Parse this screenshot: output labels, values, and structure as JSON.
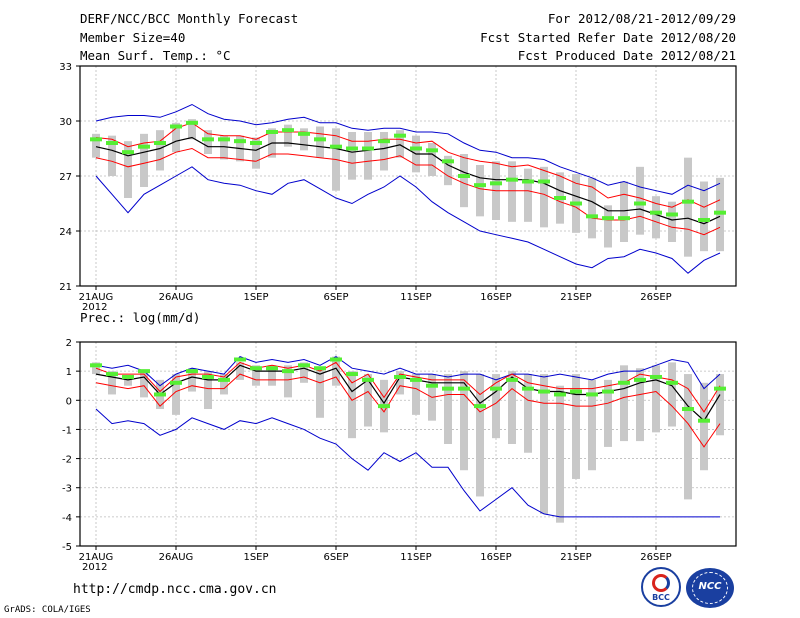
{
  "header": {
    "title": "DERF/NCC/BCC Monthly Forecast",
    "member_size": "Member Size=40",
    "variable": "Mean Surf. Temp.: °C",
    "period": "For 2012/08/21-2012/09/29",
    "started": "Fcst Started Refer Date 2012/08/20",
    "produced": "Fcst Produced Date 2012/08/21"
  },
  "footer": {
    "url": "http://cmdp.ncc.cma.gov.cn",
    "grads": "GrADS: COLA/IGES",
    "logo1_text": "BCC",
    "logo2_text": "NCC"
  },
  "colors": {
    "ensemble_mean": "#000000",
    "spread": "#ff0000",
    "envelope": "#0000cc",
    "box": "#c8c8c8",
    "marker": "#55ee33"
  },
  "chart_data": [
    {
      "type": "line",
      "title": "Mean Surf. Temp.: °C",
      "x_tick_labels": [
        "21AUG",
        "26AUG",
        "1SEP",
        "6SEP",
        "11SEP",
        "16SEP",
        "21SEP",
        "26SEP"
      ],
      "x_tick_year": "2012",
      "y_tick_labels": [
        "21",
        "24",
        "27",
        "30",
        "33"
      ],
      "ylim": [
        21,
        33
      ],
      "days": 40,
      "series": [
        {
          "name": "max",
          "values": [
            30.0,
            30.2,
            30.3,
            30.3,
            30.2,
            30.5,
            30.9,
            30.4,
            30.1,
            30.0,
            29.8,
            29.9,
            30.1,
            30.2,
            29.9,
            29.9,
            29.6,
            29.5,
            29.6,
            29.6,
            29.4,
            29.4,
            29.3,
            28.8,
            28.4,
            28.3,
            28.0,
            28.0,
            27.9,
            27.5,
            27.2,
            26.9,
            26.5,
            26.7,
            26.4,
            26.2,
            26.0,
            26.5,
            26.2,
            26.6
          ]
        },
        {
          "name": "spread_upper",
          "values": [
            29.1,
            29.0,
            28.6,
            28.8,
            28.9,
            29.6,
            29.9,
            29.3,
            29.2,
            29.2,
            29.0,
            29.4,
            29.4,
            29.4,
            29.3,
            29.2,
            28.9,
            28.9,
            29.0,
            29.0,
            28.8,
            28.9,
            28.3,
            28.0,
            27.8,
            27.7,
            27.5,
            27.6,
            27.3,
            27.0,
            26.6,
            26.4,
            25.8,
            26.0,
            25.8,
            25.5,
            25.3,
            25.7,
            25.3,
            25.7
          ]
        },
        {
          "name": "mean",
          "values": [
            28.6,
            28.4,
            28.1,
            28.3,
            28.5,
            28.9,
            29.1,
            28.6,
            28.6,
            28.5,
            28.4,
            28.8,
            28.8,
            28.7,
            28.6,
            28.5,
            28.3,
            28.4,
            28.5,
            28.7,
            28.2,
            28.2,
            27.6,
            27.2,
            26.9,
            26.8,
            26.8,
            26.8,
            26.6,
            26.2,
            25.9,
            25.6,
            25.1,
            25.1,
            25.2,
            24.9,
            24.6,
            24.7,
            24.4,
            24.8
          ]
        },
        {
          "name": "spread_lower",
          "values": [
            28.0,
            27.8,
            27.5,
            27.7,
            27.9,
            28.3,
            28.5,
            28.0,
            28.0,
            27.9,
            27.8,
            28.2,
            28.2,
            28.1,
            28.0,
            27.9,
            27.7,
            27.8,
            27.9,
            28.1,
            27.6,
            27.6,
            27.0,
            26.6,
            26.3,
            26.2,
            26.2,
            26.2,
            26.0,
            25.6,
            25.3,
            24.7,
            24.6,
            24.6,
            24.8,
            24.5,
            24.2,
            24.1,
            23.8,
            24.2
          ]
        },
        {
          "name": "min",
          "values": [
            27.0,
            26.0,
            25.0,
            26.0,
            26.5,
            27.0,
            27.5,
            26.8,
            26.6,
            26.5,
            26.2,
            26.0,
            26.6,
            26.8,
            26.3,
            25.8,
            25.5,
            26.0,
            26.4,
            27.0,
            26.4,
            25.6,
            25.0,
            24.5,
            24.0,
            23.8,
            23.6,
            23.4,
            23.0,
            22.6,
            22.2,
            22.0,
            22.5,
            22.6,
            23.0,
            22.8,
            22.5,
            21.7,
            22.4,
            22.8
          ]
        },
        {
          "name": "marker",
          "values": [
            29.0,
            28.8,
            28.3,
            28.6,
            28.8,
            29.7,
            29.9,
            29.0,
            29.0,
            28.9,
            28.8,
            29.4,
            29.5,
            29.3,
            29.0,
            28.6,
            28.5,
            28.5,
            28.9,
            29.2,
            28.5,
            28.4,
            27.8,
            27.0,
            26.5,
            26.6,
            26.8,
            26.7,
            26.7,
            25.8,
            25.5,
            24.8,
            24.7,
            24.7,
            25.5,
            25.0,
            24.9,
            25.6,
            24.6,
            25.0
          ]
        }
      ],
      "box_min": [
        28.0,
        27.0,
        25.8,
        26.4,
        27.3,
        28.3,
        29.0,
        28.2,
        27.9,
        27.8,
        27.4,
        28.0,
        28.6,
        28.4,
        28.0,
        26.2,
        26.8,
        26.8,
        27.3,
        28.0,
        27.2,
        27.0,
        26.5,
        25.3,
        24.8,
        24.6,
        24.5,
        24.5,
        24.2,
        24.4,
        23.9,
        23.6,
        23.1,
        23.4,
        23.8,
        23.6,
        23.4,
        22.6,
        22.9,
        22.9
      ],
      "box_max": [
        29.3,
        29.2,
        28.9,
        29.3,
        29.5,
        29.9,
        30.1,
        29.5,
        29.2,
        29.2,
        29.1,
        29.6,
        29.8,
        29.6,
        29.7,
        29.6,
        29.4,
        29.4,
        29.4,
        29.5,
        29.2,
        28.8,
        28.1,
        28.2,
        27.6,
        27.8,
        27.8,
        27.4,
        27.5,
        27.2,
        27.1,
        26.9,
        25.4,
        26.7,
        27.5,
        25.9,
        25.6,
        28.0,
        26.7,
        26.9
      ]
    },
    {
      "type": "line",
      "title": "Prec.: log(mm/d)",
      "x_tick_labels": [
        "21AUG",
        "26AUG",
        "1SEP",
        "6SEP",
        "11SEP",
        "16SEP",
        "21SEP",
        "26SEP"
      ],
      "x_tick_year": "2012",
      "y_tick_labels": [
        "-5",
        "-4",
        "-3",
        "-2",
        "-1",
        "0",
        "1",
        "2"
      ],
      "ylim": [
        -5,
        2
      ],
      "days": 40,
      "series": [
        {
          "name": "max",
          "values": [
            1.2,
            1.1,
            1.2,
            1.0,
            0.5,
            0.9,
            1.1,
            1.0,
            0.9,
            1.5,
            1.3,
            1.4,
            1.3,
            1.4,
            1.2,
            1.5,
            1.1,
            1.0,
            0.9,
            1.1,
            0.9,
            0.9,
            0.8,
            0.9,
            0.9,
            0.7,
            0.9,
            0.9,
            0.8,
            0.9,
            0.8,
            0.7,
            0.9,
            1.0,
            1.0,
            1.2,
            1.4,
            1.3,
            0.4,
            0.9
          ]
        },
        {
          "name": "spread_upper",
          "values": [
            1.1,
            0.9,
            0.9,
            0.9,
            0.3,
            0.8,
            0.9,
            0.9,
            0.8,
            1.3,
            1.1,
            1.2,
            1.1,
            1.2,
            1.0,
            1.3,
            0.6,
            0.9,
            0.1,
            0.9,
            0.8,
            0.7,
            0.7,
            0.7,
            0.2,
            0.6,
            0.9,
            0.6,
            0.5,
            0.4,
            0.4,
            0.4,
            0.5,
            0.6,
            0.9,
            0.8,
            0.7,
            0.4,
            -0.4,
            0.5
          ]
        },
        {
          "name": "mean",
          "values": [
            0.9,
            0.8,
            0.7,
            0.8,
            0.2,
            0.6,
            0.8,
            0.7,
            0.7,
            1.2,
            1.0,
            1.0,
            1.0,
            1.1,
            0.9,
            1.1,
            0.3,
            0.7,
            -0.1,
            0.8,
            0.7,
            0.6,
            0.6,
            0.6,
            -0.1,
            0.3,
            0.8,
            0.4,
            0.3,
            0.3,
            0.2,
            0.2,
            0.3,
            0.4,
            0.6,
            0.7,
            0.5,
            -0.2,
            -0.7,
            0.2
          ]
        },
        {
          "name": "spread_lower",
          "values": [
            0.6,
            0.5,
            0.4,
            0.5,
            -0.2,
            0.3,
            0.5,
            0.4,
            0.4,
            0.9,
            0.7,
            0.7,
            0.7,
            0.8,
            0.6,
            0.8,
            0.0,
            0.3,
            -0.4,
            0.5,
            0.4,
            0.1,
            0.2,
            0.2,
            -0.4,
            -0.1,
            0.4,
            0.0,
            -0.1,
            -0.1,
            -0.2,
            -0.2,
            -0.1,
            0.1,
            0.2,
            0.3,
            -0.2,
            -0.8,
            -1.6,
            -0.8
          ]
        },
        {
          "name": "min",
          "values": [
            -0.3,
            -0.8,
            -0.7,
            -0.8,
            -1.2,
            -1.0,
            -0.6,
            -0.8,
            -1.0,
            -0.7,
            -0.8,
            -0.6,
            -0.8,
            -1.0,
            -1.3,
            -1.5,
            -2.0,
            -2.4,
            -1.8,
            -2.1,
            -1.8,
            -2.3,
            -2.3,
            -3.1,
            -3.8,
            -3.4,
            -3.0,
            -3.6,
            -3.9,
            -4.0,
            -4.0,
            -4.0,
            -4.0,
            -4.0,
            -4.0,
            -4.0,
            -4.0,
            -4.0,
            -4.0,
            -4.0
          ]
        },
        {
          "name": "marker",
          "values": [
            1.2,
            0.9,
            0.8,
            1.0,
            0.2,
            0.6,
            1.0,
            0.8,
            0.7,
            1.4,
            1.1,
            1.1,
            1.0,
            1.2,
            1.1,
            1.4,
            0.9,
            0.7,
            -0.2,
            0.8,
            0.7,
            0.5,
            0.4,
            0.4,
            -0.2,
            0.4,
            0.7,
            0.4,
            0.3,
            0.2,
            0.3,
            0.2,
            0.3,
            0.6,
            0.7,
            0.8,
            0.6,
            -0.3,
            -0.7,
            0.4
          ]
        }
      ],
      "box_min": [
        0.9,
        0.2,
        0.5,
        0.1,
        -0.3,
        -0.5,
        0.3,
        -0.3,
        0.2,
        0.7,
        0.5,
        0.5,
        0.1,
        0.6,
        -0.6,
        0.5,
        -1.3,
        -0.9,
        -1.1,
        0.2,
        -0.5,
        -0.7,
        -1.5,
        -2.4,
        -3.3,
        -1.3,
        -1.5,
        -1.8,
        -3.9,
        -4.2,
        -2.7,
        -2.4,
        -1.6,
        -1.4,
        -1.4,
        -1.1,
        -0.9,
        -3.4,
        -2.4,
        -1.2
      ],
      "box_max": [
        1.3,
        1.0,
        0.8,
        1.0,
        0.7,
        0.9,
        1.1,
        1.0,
        0.9,
        1.3,
        1.2,
        1.2,
        1.2,
        1.3,
        1.1,
        1.5,
        1.0,
        0.9,
        0.7,
        1.0,
        0.9,
        0.9,
        0.9,
        1.0,
        0.9,
        0.9,
        1.0,
        0.9,
        0.9,
        0.5,
        0.9,
        0.7,
        0.7,
        1.2,
        1.1,
        1.2,
        1.3,
        0.9,
        0.6,
        0.9
      ]
    }
  ]
}
